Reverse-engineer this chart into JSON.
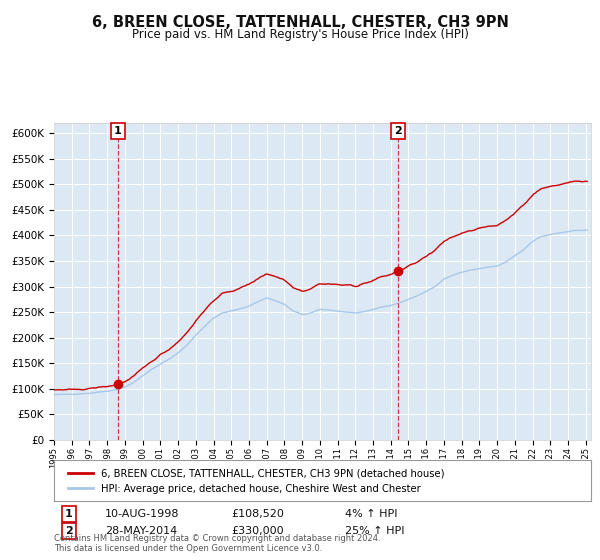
{
  "title": "6, BREEN CLOSE, TATTENHALL, CHESTER, CH3 9PN",
  "subtitle": "Price paid vs. HM Land Registry's House Price Index (HPI)",
  "title_fontsize": 10.5,
  "subtitle_fontsize": 8.5,
  "background_color": "#dce9f5",
  "plot_bg_color": "#dce9f5",
  "fig_bg_color": "#ffffff",
  "ylim": [
    0,
    620000
  ],
  "ytick_step": 50000,
  "xstart_year": 1995,
  "xend_year": 2025,
  "red_color": "#cc0000",
  "blue_color": "#a8c8e8",
  "legend_label_red": "6, BREEN CLOSE, TATTENHALL, CHESTER, CH3 9PN (detached house)",
  "legend_label_blue": "HPI: Average price, detached house, Cheshire West and Chester",
  "sale1_label": "1",
  "sale1_date": "10-AUG-1998",
  "sale1_price": "£108,520",
  "sale1_hpi": "4% ↑ HPI",
  "sale1_year": 1998.6,
  "sale1_value": 108520,
  "sale2_label": "2",
  "sale2_date": "28-MAY-2014",
  "sale2_price": "£330,000",
  "sale2_hpi": "25% ↑ HPI",
  "sale2_year": 2014.4,
  "sale2_value": 330000,
  "footer": "Contains HM Land Registry data © Crown copyright and database right 2024.\nThis data is licensed under the Open Government Licence v3.0.",
  "hpi_anchors_x": [
    1995.0,
    1996.0,
    1997.0,
    1997.5,
    1998.0,
    1998.5,
    1999.0,
    1999.5,
    2000.0,
    2000.5,
    2001.0,
    2001.5,
    2002.0,
    2002.5,
    2003.0,
    2003.5,
    2004.0,
    2004.5,
    2005.0,
    2005.5,
    2006.0,
    2006.5,
    2007.0,
    2007.5,
    2008.0,
    2008.5,
    2009.0,
    2009.5,
    2010.0,
    2010.5,
    2011.0,
    2011.5,
    2012.0,
    2012.5,
    2013.0,
    2013.5,
    2014.0,
    2014.5,
    2015.0,
    2015.5,
    2016.0,
    2016.5,
    2017.0,
    2017.5,
    2018.0,
    2018.5,
    2019.0,
    2019.5,
    2020.0,
    2020.5,
    2021.0,
    2021.5,
    2022.0,
    2022.5,
    2023.0,
    2023.5,
    2024.0,
    2024.5,
    2025.0
  ],
  "hpi_anchors_y": [
    88000,
    89000,
    91000,
    93000,
    95000,
    98000,
    103000,
    112000,
    125000,
    137000,
    148000,
    158000,
    170000,
    185000,
    205000,
    222000,
    238000,
    248000,
    252000,
    256000,
    262000,
    270000,
    278000,
    272000,
    265000,
    252000,
    245000,
    248000,
    255000,
    254000,
    252000,
    250000,
    248000,
    250000,
    255000,
    260000,
    263000,
    268000,
    275000,
    282000,
    290000,
    300000,
    315000,
    322000,
    328000,
    332000,
    335000,
    338000,
    340000,
    348000,
    360000,
    372000,
    388000,
    398000,
    402000,
    405000,
    408000,
    410000,
    410000
  ]
}
